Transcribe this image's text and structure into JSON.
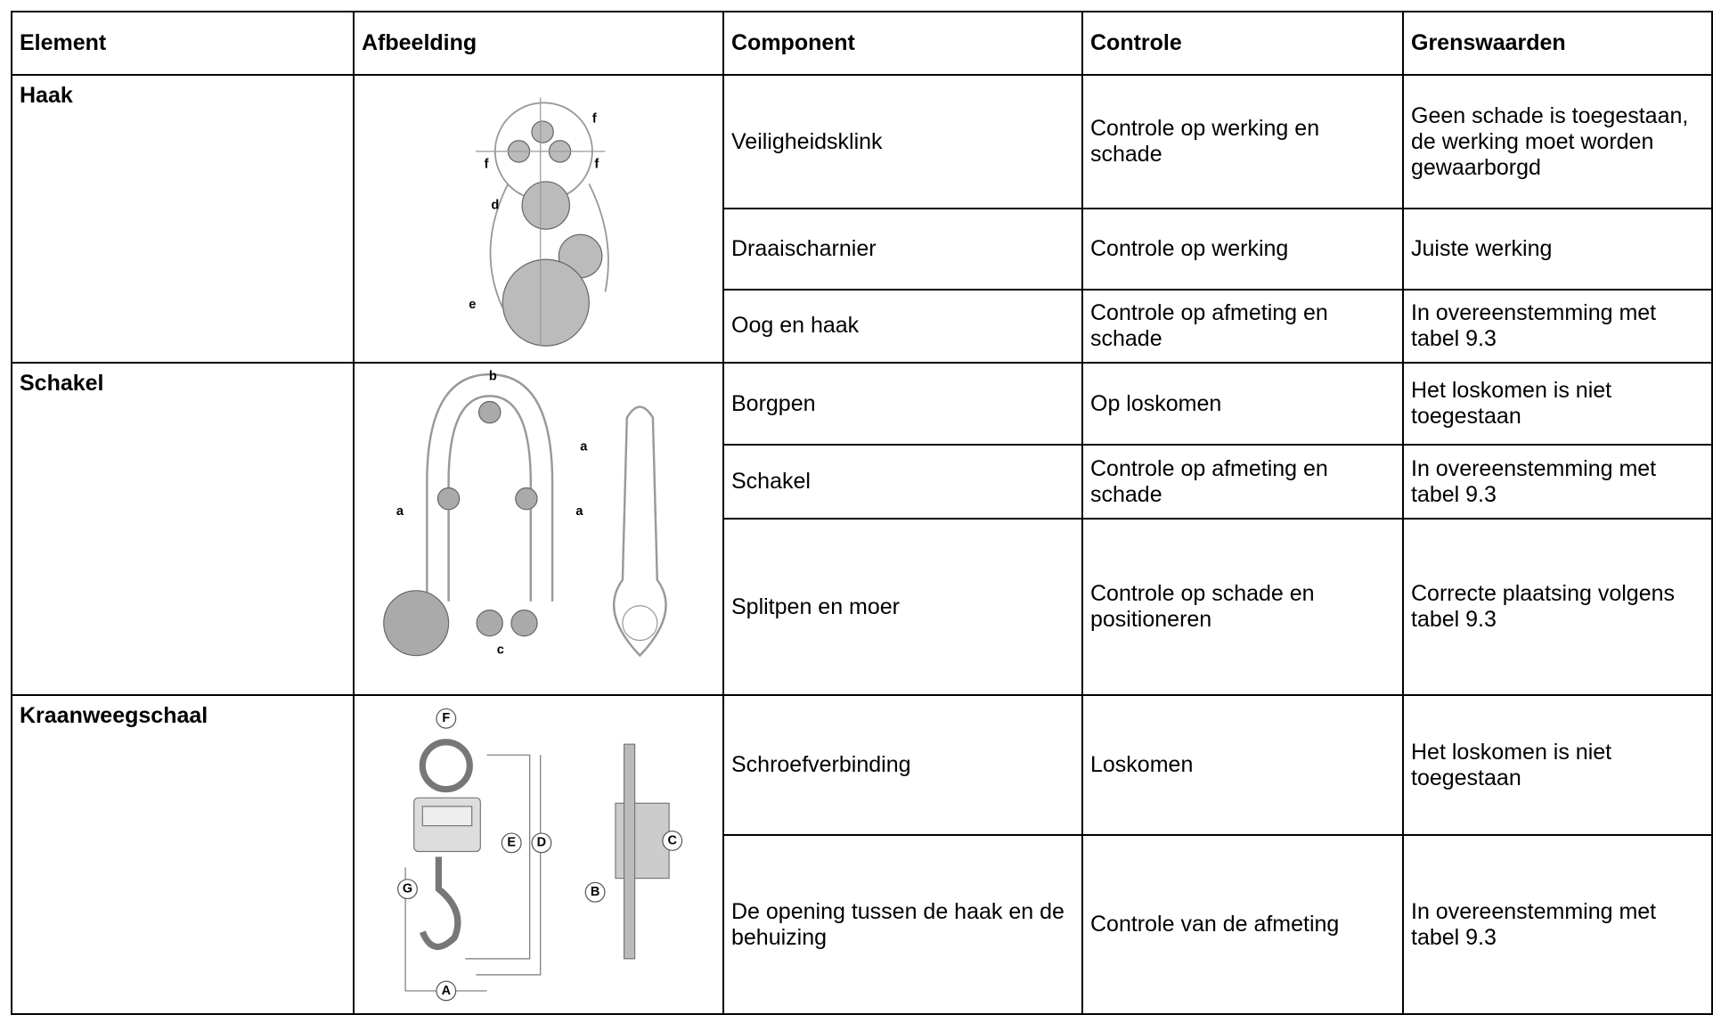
{
  "table": {
    "header": [
      "Element",
      "Afbeelding",
      "Component",
      "Controle",
      "Grenswaarden"
    ],
    "groups": [
      {
        "element": "Haak",
        "image_labels": [
          "f",
          "f",
          "f",
          "d",
          "e"
        ],
        "rows": [
          [
            "Veiligheidsklink",
            "Controle op werking en schade",
            "Geen schade is toegestaan, de werking moet worden gewaarborgd"
          ],
          [
            "Draaischarnier",
            "Controle op werking",
            "Juiste werking"
          ],
          [
            "Oog en haak",
            "Controle op afmeting en schade",
            "In overeenstemming met tabel 9.3"
          ]
        ]
      },
      {
        "element": "Schakel",
        "image_labels": [
          "b",
          "a",
          "a",
          "a",
          "c"
        ],
        "rows": [
          [
            "Borgpen",
            "Op loskomen",
            "Het loskomen is niet toegestaan"
          ],
          [
            "Schakel",
            "Controle op afmeting en schade",
            "In overeenstemming met tabel 9.3"
          ],
          [
            "Splitpen en moer",
            "Controle op schade en positioneren",
            "Correcte plaatsing volgens tabel 9.3"
          ]
        ]
      },
      {
        "element": "Kraanweegschaal",
        "image_labels": [
          "F",
          "E",
          "D",
          "C",
          "B",
          "G",
          "A"
        ],
        "rows": [
          [
            "Schroefverbinding",
            "Loskomen",
            "Het loskomen is niet toegestaan"
          ],
          [
            "De opening tussen de haak en de behuizing",
            "Controle van de afmeting",
            "In overeenstemming met tabel 9.3"
          ]
        ]
      }
    ]
  }
}
